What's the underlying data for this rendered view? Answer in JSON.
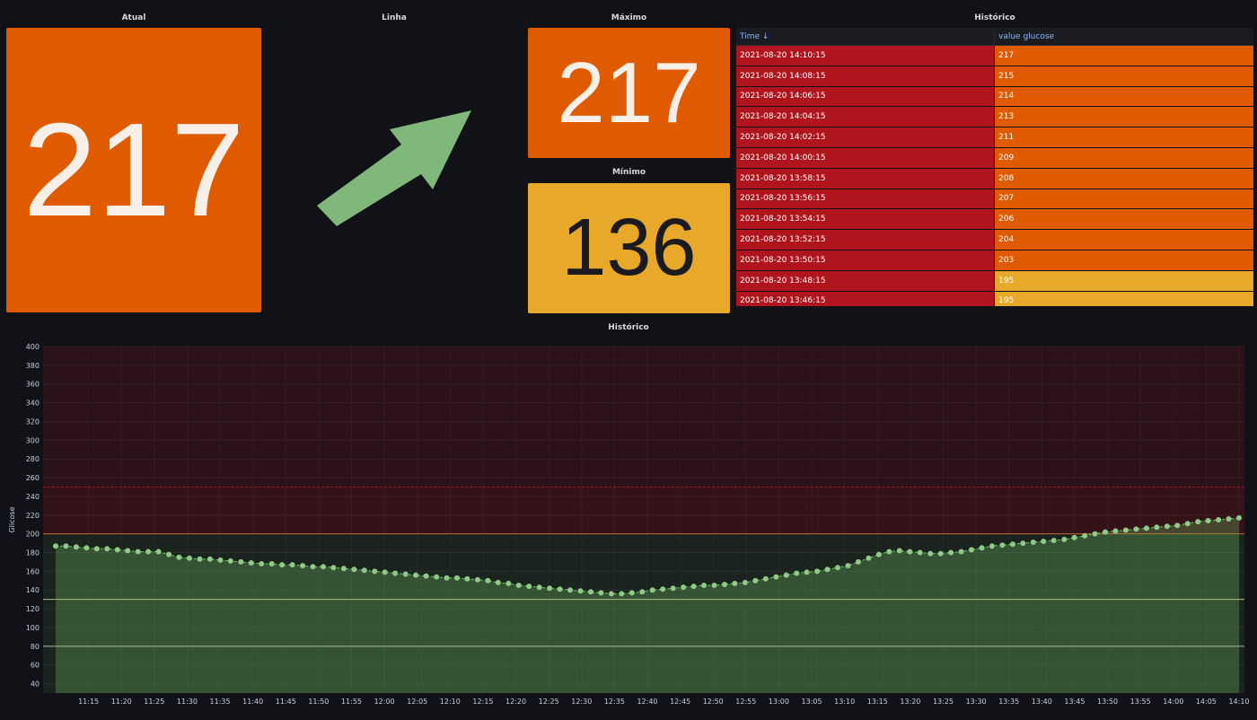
{
  "panels": {
    "atual": {
      "title": "Atual",
      "value": "217"
    },
    "linha": {
      "title": "Linha",
      "trend": "up"
    },
    "maximo": {
      "title": "Máximo",
      "value": "217"
    },
    "minimo": {
      "title": "Mínimo",
      "value": "136"
    },
    "historico_table": {
      "title": "Histórico"
    },
    "historico_chart": {
      "title": "Histórico"
    }
  },
  "table": {
    "columns": [
      "Time ↓",
      "value glucose"
    ],
    "rows": [
      {
        "time": "2021-08-20 14:10:15",
        "value": "217"
      },
      {
        "time": "2021-08-20 14:08:15",
        "value": "215"
      },
      {
        "time": "2021-08-20 14:06:15",
        "value": "214"
      },
      {
        "time": "2021-08-20 14:04:15",
        "value": "213"
      },
      {
        "time": "2021-08-20 14:02:15",
        "value": "211"
      },
      {
        "time": "2021-08-20 14:00:15",
        "value": "209"
      },
      {
        "time": "2021-08-20 13:58:15",
        "value": "208"
      },
      {
        "time": "2021-08-20 13:56:15",
        "value": "207"
      },
      {
        "time": "2021-08-20 13:54:15",
        "value": "206"
      },
      {
        "time": "2021-08-20 13:52:15",
        "value": "204"
      },
      {
        "time": "2021-08-20 13:50:15",
        "value": "203"
      },
      {
        "time": "2021-08-20 13:48:15",
        "value": "195"
      },
      {
        "time": "2021-08-20 13:46:15",
        "value": "195"
      }
    ]
  },
  "colors": {
    "orange": "#e05a00",
    "yellow": "#e8a82a",
    "red": "#b0151e",
    "green": "#73bf69",
    "background": "#111217"
  },
  "chart_data": {
    "type": "line",
    "ylabel": "Glicose",
    "ylim": [
      30,
      400
    ],
    "yticks": [
      40,
      60,
      80,
      100,
      120,
      140,
      160,
      180,
      200,
      220,
      240,
      260,
      280,
      300,
      320,
      340,
      360,
      380,
      400
    ],
    "xticks": [
      "11:15",
      "11:20",
      "11:25",
      "11:30",
      "11:35",
      "11:40",
      "11:45",
      "11:50",
      "11:55",
      "12:00",
      "12:05",
      "12:10",
      "12:15",
      "12:20",
      "12:25",
      "12:30",
      "12:35",
      "12:40",
      "12:45",
      "12:50",
      "12:55",
      "13:00",
      "13:05",
      "13:10",
      "13:15",
      "13:20",
      "13:25",
      "13:30",
      "13:35",
      "13:40",
      "13:45",
      "13:50",
      "13:55",
      "14:00",
      "14:05",
      "14:10"
    ],
    "thresholds": [
      80,
      130,
      200,
      250
    ],
    "x_start": "11:10",
    "x_end": "14:10",
    "values": [
      187,
      187,
      186,
      185,
      184,
      184,
      183,
      182,
      181,
      181,
      181,
      178,
      175,
      174,
      173,
      173,
      172,
      171,
      170,
      169,
      168,
      168,
      167,
      167,
      166,
      165,
      165,
      164,
      163,
      162,
      161,
      160,
      159,
      158,
      157,
      156,
      155,
      154,
      153,
      153,
      152,
      151,
      150,
      148,
      147,
      145,
      144,
      143,
      142,
      141,
      140,
      139,
      138,
      137,
      136,
      136,
      137,
      138,
      140,
      141,
      142,
      143,
      144,
      145,
      145,
      146,
      147,
      148,
      150,
      152,
      154,
      156,
      158,
      159,
      160,
      162,
      164,
      166,
      170,
      174,
      178,
      181,
      182,
      181,
      180,
      179,
      179,
      180,
      181,
      183,
      185,
      187,
      188,
      189,
      190,
      191,
      192,
      193,
      194,
      196,
      198,
      200,
      202,
      203,
      204,
      205,
      206,
      207,
      208,
      209,
      211,
      213,
      214,
      215,
      216,
      217
    ]
  }
}
